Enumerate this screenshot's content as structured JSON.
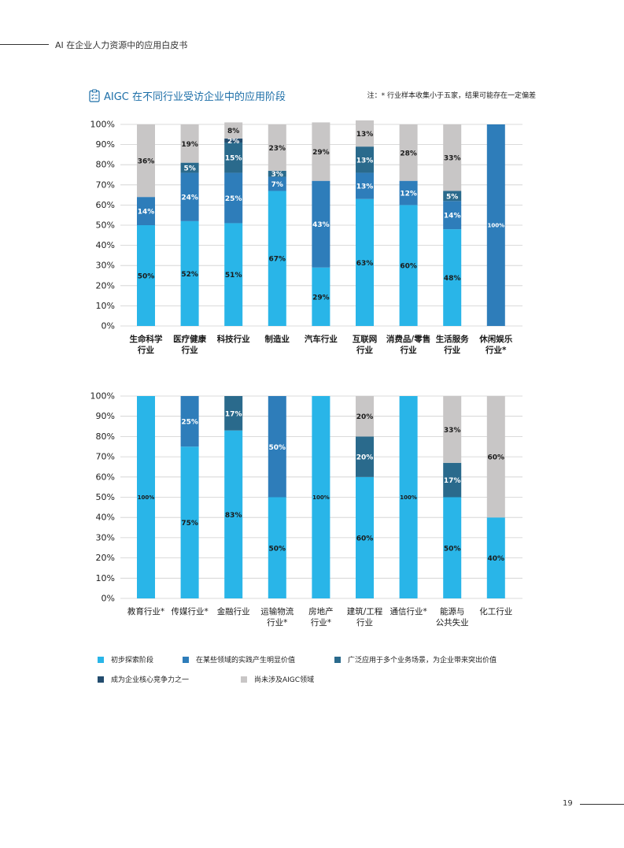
{
  "header": {
    "text": "AI 在企业人力资源中的应用白皮书"
  },
  "title": "AIGC 在不同行业受访企业中的应用阶段",
  "note": "注：* 行业样本收集小于五家，结果可能存在一定偏差",
  "page_number": "19",
  "colors": {
    "s1": "#29b5e8",
    "s2": "#2e7dba",
    "s3": "#2a6a8c",
    "s4": "#234c6e",
    "s5": "#c8c6c6"
  },
  "legend": [
    {
      "label": "初步探索阶段",
      "color": "#29b5e8"
    },
    {
      "label": "在某些领域的实践产生明显价值",
      "color": "#2e7dba"
    },
    {
      "label": "广泛应用于多个业务场景，为企业带来突出价值",
      "color": "#2a6a8c"
    },
    {
      "label": "成为企业核心竞争力之一",
      "color": "#234c6e"
    },
    {
      "label": "尚未涉及AIGC领域",
      "color": "#c8c6c6"
    }
  ],
  "chart_data": [
    {
      "type": "bar",
      "stacked": true,
      "categories": [
        "生命科学\n行业",
        "医疗健康\n行业",
        "科技行业",
        "制造业",
        "汽车行业",
        "互联网\n行业",
        "消费品/零售\n行业",
        "生活服务\n行业",
        "休闲娱乐\n行业*"
      ],
      "ylim": [
        0,
        100
      ],
      "yticks": [
        "0%",
        "10%",
        "20%",
        "30%",
        "40%",
        "50%",
        "60%",
        "70%",
        "80%",
        "90%",
        "100%"
      ],
      "series": [
        {
          "name": "初步探索阶段",
          "values": [
            50,
            52,
            51,
            67,
            29,
            63,
            60,
            48,
            0
          ]
        },
        {
          "name": "在某些领域的实践产生明显价值",
          "values": [
            14,
            24,
            25,
            7,
            43,
            13,
            12,
            14,
            100
          ]
        },
        {
          "name": "广泛应用于多个业务场景，为企业带来突出价值",
          "values": [
            0,
            5,
            15,
            3,
            0,
            13,
            0,
            5,
            0
          ]
        },
        {
          "name": "成为企业核心竞争力之一",
          "values": [
            0,
            0,
            2,
            0,
            0,
            0,
            0,
            0,
            0
          ]
        },
        {
          "name": "尚未涉及AIGC领域",
          "values": [
            36,
            19,
            8,
            23,
            29,
            13,
            28,
            33,
            0
          ]
        }
      ]
    },
    {
      "type": "bar",
      "stacked": true,
      "categories": [
        "教育行业*",
        "传媒行业*",
        "金融行业",
        "运输物流\n行业*",
        "房地产\n行业*",
        "建筑/工程\n行业",
        "通信行业*",
        "能源与\n公共失业",
        "化工行业"
      ],
      "ylim": [
        0,
        100
      ],
      "yticks": [
        "0%",
        "10%",
        "20%",
        "30%",
        "40%",
        "50%",
        "60%",
        "70%",
        "80%",
        "90%",
        "100%"
      ],
      "series": [
        {
          "name": "初步探索阶段",
          "values": [
            100,
            75,
            83,
            50,
            100,
            60,
            100,
            50,
            40
          ]
        },
        {
          "name": "在某些领域的实践产生明显价值",
          "values": [
            0,
            25,
            0,
            50,
            0,
            0,
            0,
            0,
            0
          ]
        },
        {
          "name": "广泛应用于多个业务场景，为企业带来突出价值",
          "values": [
            0,
            0,
            17,
            0,
            0,
            20,
            0,
            17,
            0
          ]
        },
        {
          "name": "成为企业核心竞争力之一",
          "values": [
            0,
            0,
            0,
            0,
            0,
            0,
            0,
            0,
            0
          ]
        },
        {
          "name": "尚未涉及AIGC领域",
          "values": [
            0,
            0,
            0,
            0,
            0,
            20,
            0,
            33,
            60
          ]
        }
      ]
    }
  ]
}
